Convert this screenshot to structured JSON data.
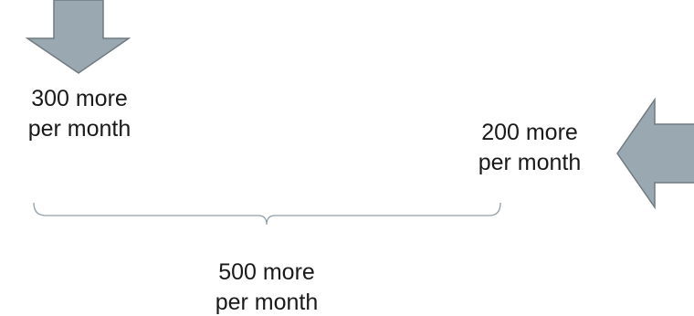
{
  "colors": {
    "arrow_fill": "#9aa8b1",
    "arrow_stroke": "#6f7a81",
    "bracket_stroke": "#8fa0aa",
    "text": "#1a1a1a",
    "background": "#ffffff"
  },
  "labels": {
    "top_left": {
      "line1": "300 more",
      "line2": "per month"
    },
    "right": {
      "line1": "200 more",
      "line2": "per month"
    },
    "bottom": {
      "line1": "500 more",
      "line2": "per month"
    }
  },
  "shapes": {
    "down_arrow": "arrow-down-icon",
    "left_arrow": "arrow-left-icon",
    "bracket": "brace-bracket"
  }
}
